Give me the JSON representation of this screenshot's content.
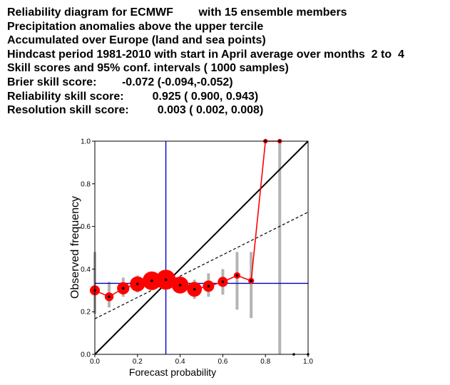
{
  "header": {
    "lines": [
      "Reliability diagram for ECMWF        with 15 ensemble members",
      "Precipitation anomalies above the upper tercile",
      "Accumulated over Europe (land and sea points)",
      "Hindcast period 1981-2010 with start in April average over months  2 to  4",
      "Skill scores and 95% conf. intervals ( 1000 samples)",
      "Brier skill score:        -0.072 (-0.094,-0.052)",
      "Reliability skill score:         0.925 ( 0.900, 0.943)",
      "Resolution skill score:         0.003 ( 0.002, 0.008)"
    ]
  },
  "chart_data": {
    "type": "line",
    "title": "",
    "xlabel": "Forecast probability",
    "ylabel": "Observed frequency",
    "xlim": [
      0.0,
      1.0
    ],
    "ylim": [
      0.0,
      1.0
    ],
    "xticks": [
      "0.0",
      "0.2",
      "0.4",
      "0.6",
      "0.8",
      "1.0"
    ],
    "yticks": [
      "0.0",
      "0.2",
      "0.4",
      "0.6",
      "0.8",
      "1.0"
    ],
    "climatology": 0.333,
    "no_skill_line": {
      "x": [
        0.0,
        1.0
      ],
      "y": [
        0.167,
        0.667
      ]
    },
    "perfect_reliability_line": {
      "x": [
        0.0,
        1.0
      ],
      "y": [
        0.0,
        1.0
      ]
    },
    "reliability_curve": {
      "x": [
        0.0,
        0.067,
        0.133,
        0.2,
        0.267,
        0.333,
        0.4,
        0.467,
        0.533,
        0.6,
        0.667,
        0.733,
        0.8,
        0.867
      ],
      "y": [
        0.3,
        0.27,
        0.31,
        0.33,
        0.345,
        0.35,
        0.325,
        0.305,
        0.32,
        0.34,
        0.37,
        0.345,
        1.0,
        1.0
      ],
      "relative_sample_size": [
        0.42,
        0.35,
        0.55,
        0.72,
        0.92,
        1.0,
        0.82,
        0.7,
        0.5,
        0.42,
        0.22,
        0.18,
        0.1,
        0.1
      ]
    },
    "confidence_intervals": [
      {
        "x": 0.0,
        "low": 0.19,
        "high": 0.48
      },
      {
        "x": 0.067,
        "low": 0.22,
        "high": 0.34
      },
      {
        "x": 0.133,
        "low": 0.27,
        "high": 0.36
      },
      {
        "x": 0.2,
        "low": 0.29,
        "high": 0.37
      },
      {
        "x": 0.267,
        "low": 0.31,
        "high": 0.38
      },
      {
        "x": 0.333,
        "low": 0.32,
        "high": 0.38
      },
      {
        "x": 0.4,
        "low": 0.29,
        "high": 0.36
      },
      {
        "x": 0.467,
        "low": 0.26,
        "high": 0.35
      },
      {
        "x": 0.533,
        "low": 0.27,
        "high": 0.38
      },
      {
        "x": 0.6,
        "low": 0.28,
        "high": 0.4
      },
      {
        "x": 0.667,
        "low": 0.21,
        "high": 0.48
      },
      {
        "x": 0.733,
        "low": 0.17,
        "high": 0.48
      },
      {
        "x": 0.867,
        "low": 0.0,
        "high": 1.0
      }
    ],
    "sharpness_points": {
      "x": [
        0.933,
        1.0
      ],
      "y": [
        0.0,
        0.0
      ]
    },
    "grid": false,
    "colors": {
      "curve": "#ff0000",
      "markers": "#ff0000",
      "marker_center": "#000000",
      "climatology": "#0000bb",
      "perfect": "#000000",
      "no_skill": "#000000",
      "confidence": "#b4b4b4"
    }
  }
}
